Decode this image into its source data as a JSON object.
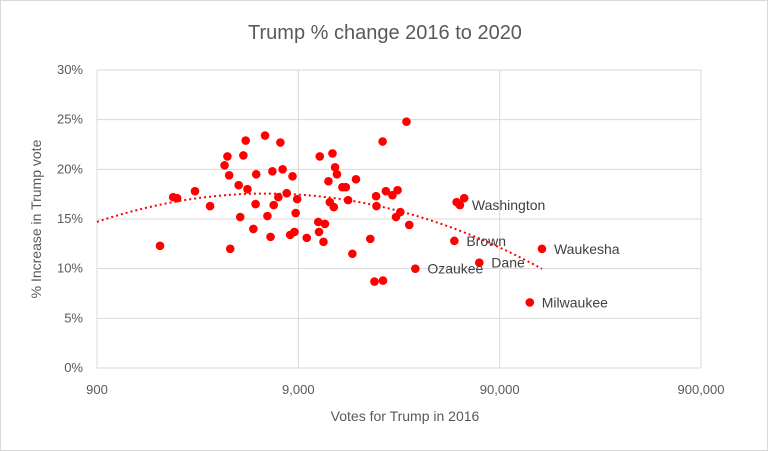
{
  "chart_data": {
    "type": "scatter",
    "title": "Trump % change 2016 to 2020",
    "xlabel": "Votes for Trump in 2016",
    "ylabel": "% Increase in Trump vote",
    "x_scale": "log10",
    "xlim": [
      900,
      900000
    ],
    "ylim": [
      0,
      30
    ],
    "x_tick_labels": [
      "900",
      "9,000",
      "90,000",
      "900,000"
    ],
    "y_tick_labels": [
      "0%",
      "5%",
      "10%",
      "15%",
      "20%",
      "25%",
      "30%"
    ],
    "grid": "horizontal",
    "legend": "none",
    "marker_color": "#ff0000",
    "trendline": {
      "style": "dotted",
      "color": "#ff0000",
      "kind": "polynomial"
    },
    "annotations": [
      {
        "label": "Washington",
        "x": 57100,
        "y": 16.4
      },
      {
        "label": "Brown",
        "x": 53600,
        "y": 12.8
      },
      {
        "label": "Ozaukee",
        "x": 34300,
        "y": 10.0
      },
      {
        "label": "Dane",
        "x": 71300,
        "y": 10.6
      },
      {
        "label": "Waukesha",
        "x": 146000,
        "y": 12.0
      },
      {
        "label": "Milwaukee",
        "x": 127000,
        "y": 6.6
      }
    ],
    "points": [
      [
        1850,
        12.3
      ],
      [
        2150,
        17.2
      ],
      [
        2250,
        17.1
      ],
      [
        2760,
        17.8
      ],
      [
        3280,
        16.3
      ],
      [
        3870,
        20.4
      ],
      [
        4000,
        21.3
      ],
      [
        4080,
        19.4
      ],
      [
        4130,
        12.0
      ],
      [
        4550,
        18.4
      ],
      [
        4630,
        15.2
      ],
      [
        4800,
        21.4
      ],
      [
        4930,
        22.9
      ],
      [
        5030,
        18.0
      ],
      [
        5380,
        14.0
      ],
      [
        5520,
        16.5
      ],
      [
        5560,
        19.5
      ],
      [
        6150,
        23.4
      ],
      [
        6320,
        15.3
      ],
      [
        6550,
        13.2
      ],
      [
        6690,
        19.8
      ],
      [
        6790,
        16.4
      ],
      [
        7160,
        17.2
      ],
      [
        7330,
        22.7
      ],
      [
        7520,
        20.0
      ],
      [
        7880,
        17.6
      ],
      [
        8200,
        13.4
      ],
      [
        8420,
        19.3
      ],
      [
        8610,
        13.7
      ],
      [
        8730,
        15.6
      ],
      [
        8880,
        17.0
      ],
      [
        9910,
        13.1
      ],
      [
        11300,
        14.7
      ],
      [
        11400,
        13.7
      ],
      [
        11500,
        21.3
      ],
      [
        12200,
        14.5
      ],
      [
        12700,
        18.8
      ],
      [
        12900,
        16.7
      ],
      [
        13300,
        21.6
      ],
      [
        13500,
        16.2
      ],
      [
        13700,
        20.2
      ],
      [
        14000,
        19.5
      ],
      [
        14900,
        18.2
      ],
      [
        15500,
        18.2
      ],
      [
        15900,
        16.9
      ],
      [
        16700,
        11.5
      ],
      [
        17400,
        19.0
      ],
      [
        20500,
        13.0
      ],
      [
        21500,
        8.7
      ],
      [
        21900,
        17.3
      ],
      [
        22000,
        16.3
      ],
      [
        23700,
        8.8
      ],
      [
        24500,
        17.8
      ],
      [
        26400,
        17.4
      ],
      [
        27500,
        15.2
      ],
      [
        28000,
        17.9
      ],
      [
        28900,
        15.7
      ],
      [
        32000,
        14.4
      ],
      [
        60000,
        17.1
      ],
      [
        23600,
        22.8
      ],
      [
        31000,
        24.8
      ],
      [
        12000,
        12.7
      ],
      [
        34300,
        10.0
      ],
      [
        53600,
        12.8
      ],
      [
        57100,
        16.4
      ],
      [
        55000,
        16.7
      ],
      [
        71300,
        10.6
      ],
      [
        127000,
        6.6
      ],
      [
        146000,
        12.0
      ]
    ]
  }
}
